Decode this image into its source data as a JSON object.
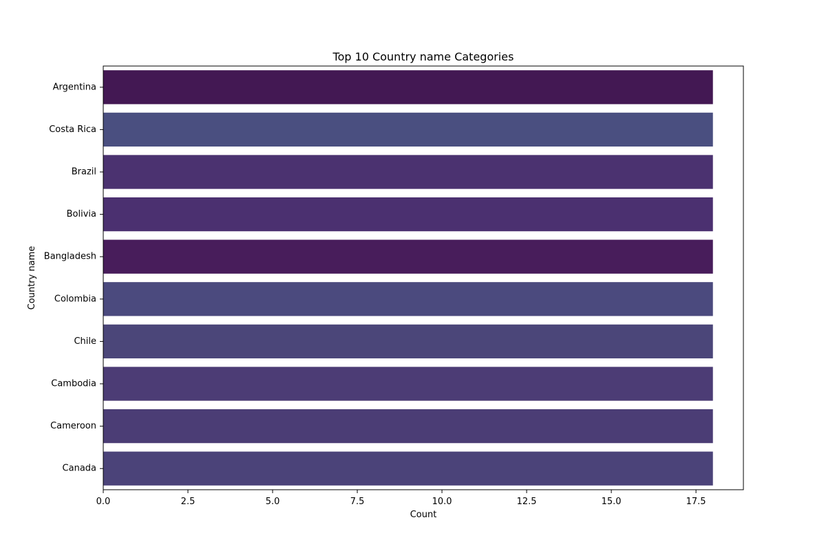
{
  "chart_data": {
    "type": "bar",
    "orientation": "horizontal",
    "title": "Top 10 Country name Categories",
    "xlabel": "Count",
    "ylabel": "Country name",
    "categories": [
      "Argentina",
      "Costa Rica",
      "Brazil",
      "Bolivia",
      "Bangladesh",
      "Colombia",
      "Chile",
      "Cambodia",
      "Cameroon",
      "Canada"
    ],
    "values": [
      18,
      18,
      18,
      18,
      18,
      18,
      18,
      18,
      18,
      18
    ],
    "bar_colors": [
      "#431853",
      "#4a4f80",
      "#4b3270",
      "#4b3070",
      "#481d5b",
      "#4b4a7e",
      "#4b4679",
      "#4c3c75",
      "#4b3d75",
      "#4b4379"
    ],
    "xlim": [
      0,
      18.9
    ],
    "x_ticks": [
      0,
      2.5,
      5,
      7.5,
      10,
      12.5,
      15,
      17.5
    ],
    "x_tick_labels": [
      "0.0",
      "2.5",
      "5.0",
      "7.5",
      "10.0",
      "12.5",
      "15.0",
      "17.5"
    ],
    "grid": false,
    "legend": "none"
  }
}
